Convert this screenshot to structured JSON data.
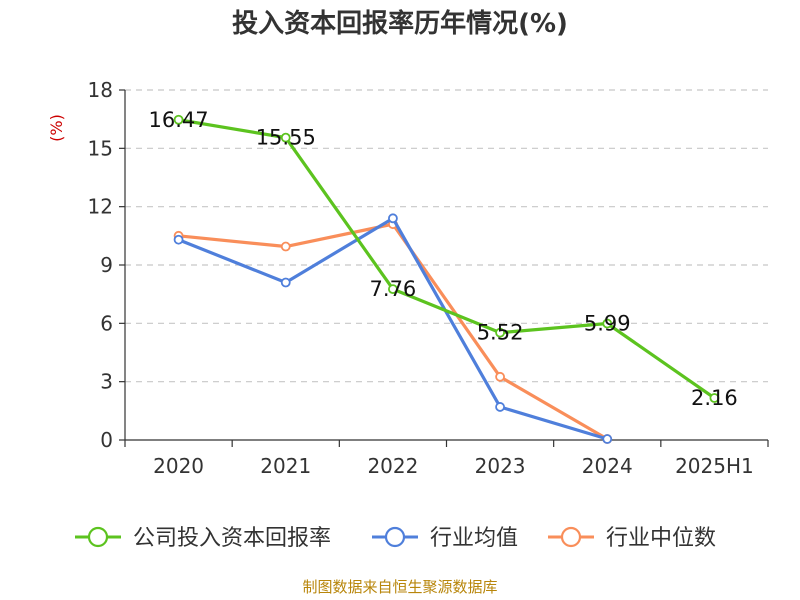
{
  "title": "投入资本回报率历年情况(%)",
  "source": "制图数据来自恒生聚源数据库",
  "chart_data": {
    "type": "line",
    "title": "投入资本回报率历年情况(%)",
    "ylabel": "(%)",
    "categories": [
      "2020",
      "2021",
      "2022",
      "2023",
      "2024",
      "2025H1"
    ],
    "ylim": [
      0,
      18
    ],
    "yticks": [
      0,
      3,
      6,
      9,
      12,
      15,
      18
    ],
    "grid": true,
    "legend_position": "bottom",
    "series": [
      {
        "name": "公司投入资本回报率",
        "color": "#5cc31f",
        "values": [
          16.47,
          15.55,
          7.76,
          5.52,
          5.99,
          2.16
        ],
        "show_labels": true
      },
      {
        "name": "行业均值",
        "color": "#4f7fdb",
        "values": [
          10.3,
          8.1,
          11.4,
          1.7,
          0.05,
          null
        ],
        "show_labels": false
      },
      {
        "name": "行业中位数",
        "color": "#f98e5a",
        "values": [
          10.5,
          9.95,
          11.1,
          3.25,
          0.05,
          null
        ],
        "show_labels": false
      }
    ]
  }
}
